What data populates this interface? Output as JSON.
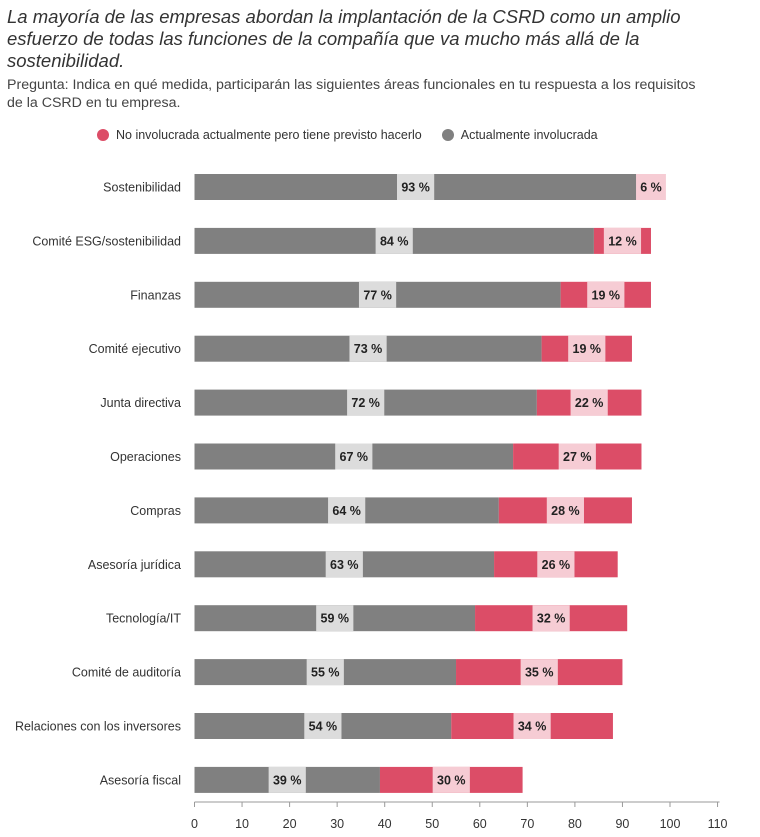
{
  "colors": {
    "involved": "#808080",
    "planned": "#dc4d67",
    "involved_label_bg": "#dcdcdc",
    "planned_label_bg": "#f6ccd4",
    "axis": "#9a9a9a"
  },
  "chart_data": {
    "type": "bar",
    "orientation": "horizontal",
    "stacked": true,
    "title": "La mayoría de las empresas abordan la implantación de la CSRD como un amplio esfuerzo de todas las funciones de la compañía que va mucho más allá de la sostenibilidad.",
    "subtitle": "Pregunta: Indica en qué medida, participarán las siguientes áreas funcionales en tu respuesta a los requisitos de la CSRD en tu empresa.",
    "legend_position": "top",
    "xlim": [
      0,
      110
    ],
    "xticks": [
      0,
      10,
      20,
      30,
      40,
      50,
      60,
      70,
      80,
      90,
      100,
      110
    ],
    "grid": false,
    "categories": [
      "Sostenibilidad",
      "Comité ESG/sostenibilidad",
      "Finanzas",
      "Comité ejecutivo",
      "Junta directiva",
      "Operaciones",
      "Compras",
      "Asesoría jurídica",
      "Tecnología/IT",
      "Comité de auditoría",
      "Relaciones con los inversores",
      "Asesoría fiscal"
    ],
    "series": [
      {
        "name": "Actualmente involucrada",
        "values": [
          93,
          84,
          77,
          73,
          72,
          67,
          64,
          63,
          59,
          55,
          54,
          39
        ],
        "labels": [
          "93 %",
          "84 %",
          "77 %",
          "73 %",
          "72 %",
          "67 %",
          "64 %",
          "63 %",
          "59 %",
          "55 %",
          "54 %",
          "39 %"
        ]
      },
      {
        "name": "No involucrada actualmente pero tiene previsto hacerlo",
        "values": [
          6,
          12,
          19,
          19,
          22,
          27,
          28,
          26,
          32,
          35,
          34,
          30
        ],
        "labels": [
          "6 %",
          "12 %",
          "19 %",
          "19 %",
          "22 %",
          "27 %",
          "28 %",
          "26 %",
          "32 %",
          "35 %",
          "34 %",
          "30 %"
        ]
      }
    ]
  }
}
